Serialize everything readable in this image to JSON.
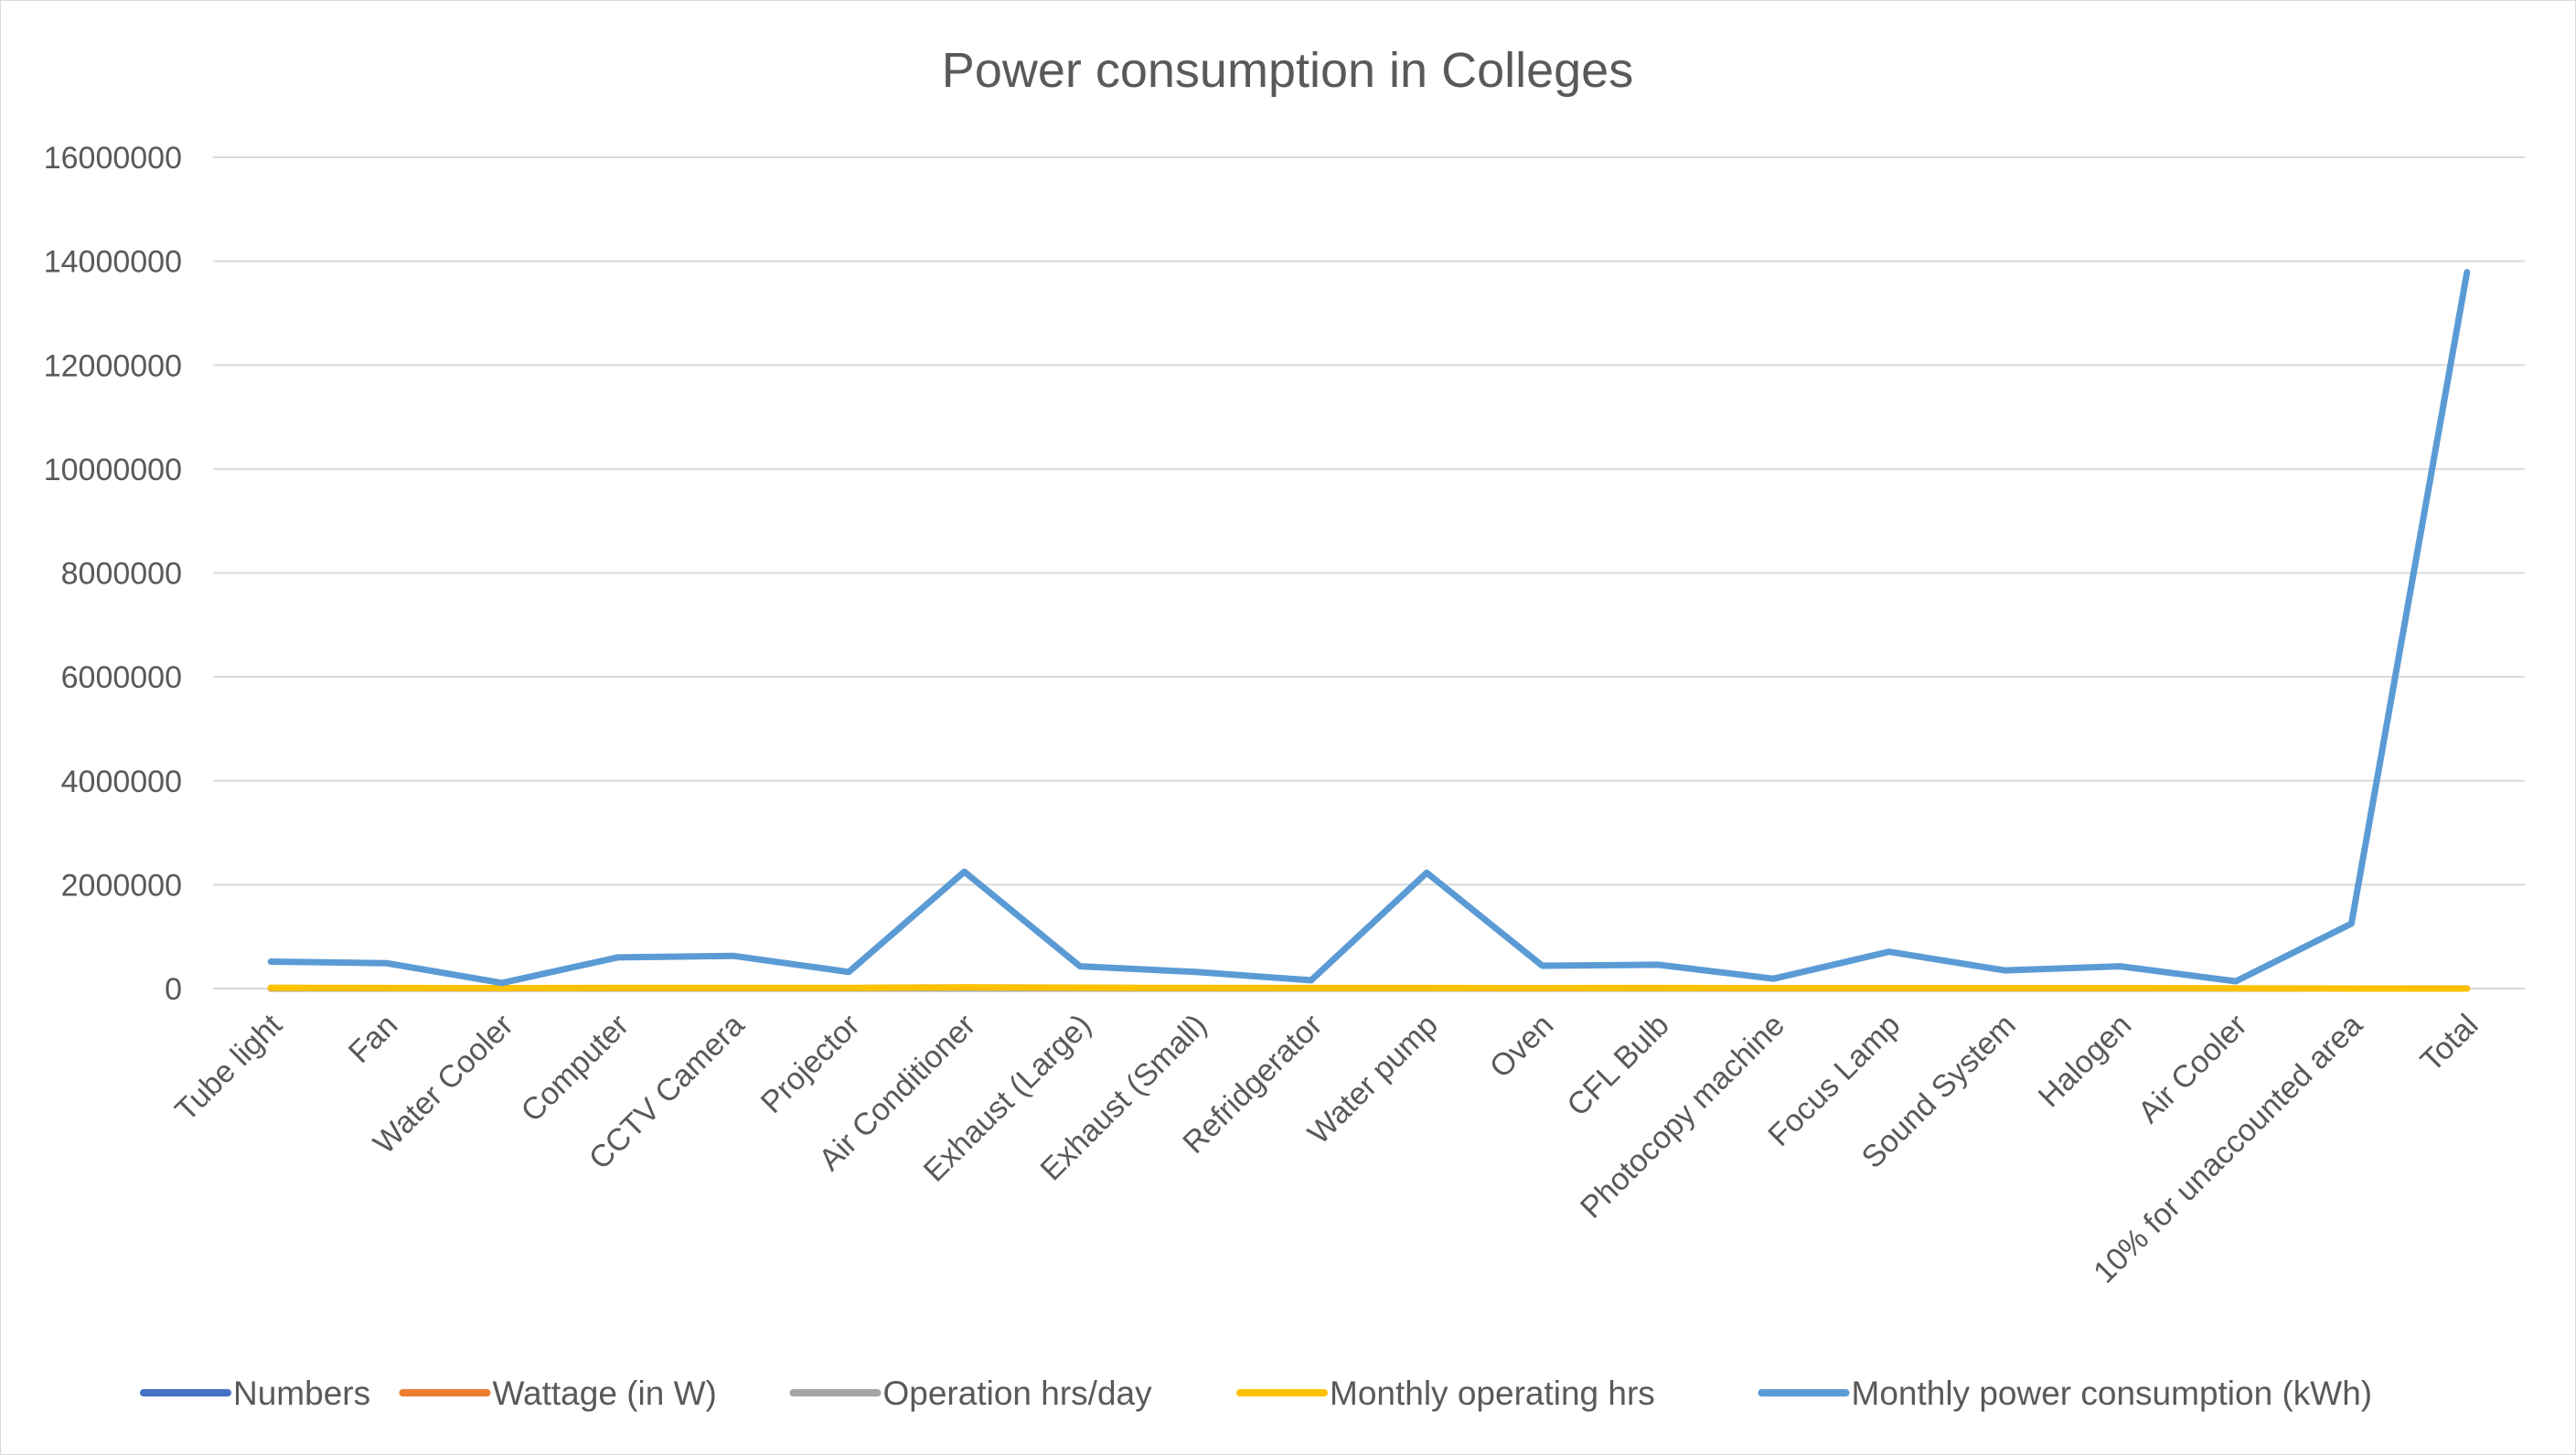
{
  "chart_data": {
    "type": "line",
    "title": "Power consumption in Colleges",
    "xlabel": "",
    "ylabel": "",
    "ylim": [
      0,
      16000000
    ],
    "yticks": [
      0,
      2000000,
      4000000,
      6000000,
      8000000,
      10000000,
      12000000,
      14000000,
      16000000
    ],
    "ytick_labels": [
      "0",
      "2000000",
      "4000000",
      "6000000",
      "8000000",
      "10000000",
      "12000000",
      "14000000",
      "16000000"
    ],
    "grid": true,
    "legend_position": "bottom",
    "categories": [
      "Tube light",
      "Fan",
      "Water Cooler",
      "Computer",
      "CCTV Camera",
      "Projector",
      "Air Conditioner",
      "Exhaust (Large)",
      "Exhaust (Small)",
      "Refridgerator",
      "Water pump",
      "Oven",
      "CFL Bulb",
      "Photocopy machine",
      "Focus Lamp",
      "Sound System",
      "Halogen",
      "Air Cooler",
      "10% for unaccounted area",
      "Total"
    ],
    "series": [
      {
        "name": "Numbers",
        "color": "#4472c4",
        "values": [
          500,
          400,
          20,
          300,
          150,
          60,
          60,
          40,
          50,
          20,
          6,
          30,
          200,
          15,
          40,
          10,
          30,
          20,
          200,
          2000
        ]
      },
      {
        "name": "Wattage (in W)",
        "color": "#ed7d31",
        "values": [
          40,
          75,
          500,
          150,
          15,
          250,
          2000,
          500,
          100,
          300,
          3000,
          1000,
          20,
          1000,
          1000,
          1000,
          500,
          200,
          0,
          0
        ]
      },
      {
        "name": "Operation hrs/day",
        "color": "#a5a5a5",
        "values": [
          8,
          8,
          8,
          8,
          24,
          8,
          8,
          8,
          8,
          24,
          8,
          8,
          8,
          8,
          8,
          8,
          8,
          8,
          0,
          0
        ]
      },
      {
        "name": "Monthly operating hrs",
        "color": "#ffc000",
        "values": [
          15000,
          10000,
          9000,
          12000,
          14000,
          13000,
          25000,
          18000,
          12000,
          10000,
          11000,
          9000,
          10000,
          8000,
          9000,
          8000,
          9000,
          6000,
          0,
          0
        ]
      },
      {
        "name": "Monthly power consumption (kWh)",
        "color": "#5b9bd5",
        "values": [
          520000,
          490000,
          110000,
          600000,
          630000,
          320000,
          2250000,
          430000,
          320000,
          160000,
          2230000,
          440000,
          460000,
          190000,
          710000,
          350000,
          430000,
          140000,
          1250000,
          13790000
        ]
      }
    ]
  }
}
